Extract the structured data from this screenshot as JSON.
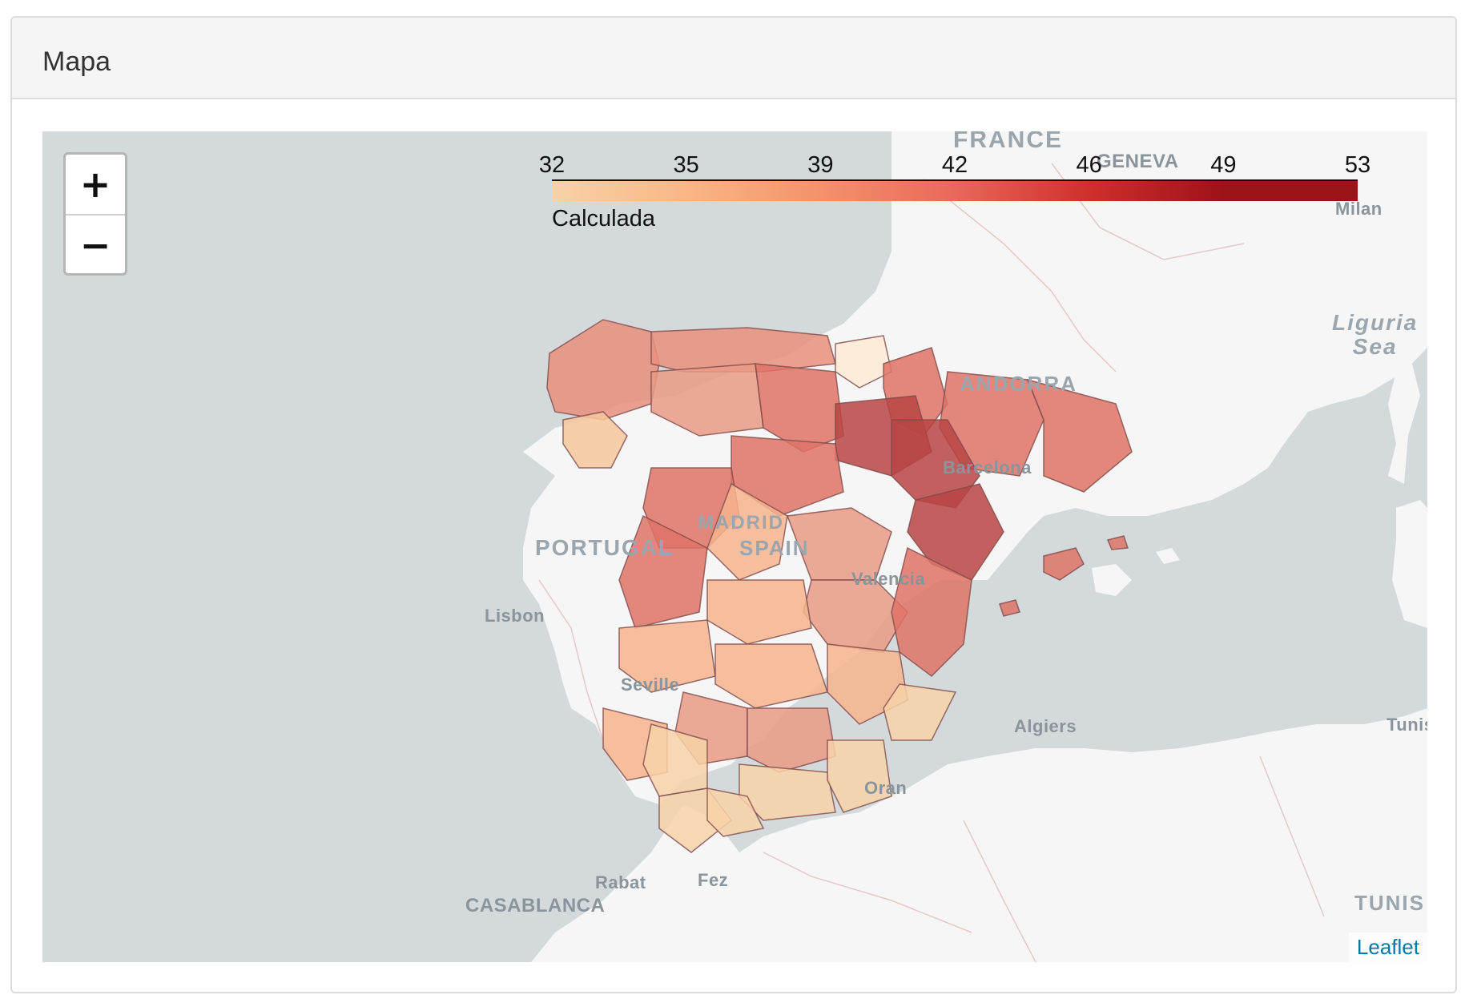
{
  "panel": {
    "title": "Mapa"
  },
  "map": {
    "zoom_in": "+",
    "zoom_out": "−",
    "attribution": "Leaflet",
    "legend": {
      "title": "Calculada",
      "ticks": [
        "32",
        "35",
        "39",
        "42",
        "46",
        "49",
        "53"
      ],
      "colors": [
        "#f8d2a8",
        "#f9b785",
        "#f4926b",
        "#e8685a",
        "#cf2f2a",
        "#9c1219"
      ]
    },
    "labels": {
      "france": "FRANCE",
      "geneva": "GENEVA",
      "milan": "Milan",
      "ligurian_sea": [
        "Liguria",
        "Sea"
      ],
      "andorra": "ANDORRA",
      "barcelona": "Barcelona",
      "madrid": "MADRID",
      "spain": "SPAIN",
      "portugal": "PORTUGAL",
      "lisbon": "Lisbon",
      "valencia": "Valencia",
      "sevilla": "Seville",
      "algiers": "Algiers",
      "tunis": "Tunis",
      "oran": "Oran",
      "rabat": "Rabat",
      "fez": "Fez",
      "casablanca": "CASABLANCA",
      "tunisia": "TUNIS"
    }
  }
}
